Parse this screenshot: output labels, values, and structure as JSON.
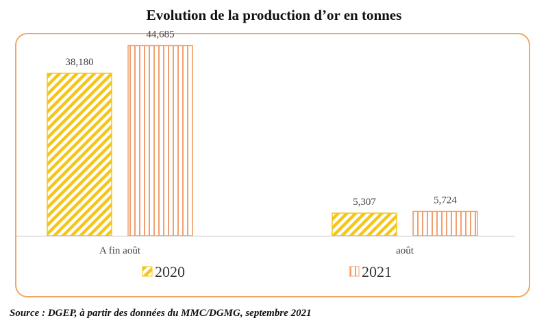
{
  "title": "Evolution de la production d’or en tonnes",
  "source": "Source : DGEP, à partir des données du MMC/DGMG, septembre 2021",
  "colors": {
    "frame": "#f0a860",
    "s2020": "#f5c518",
    "s2021": "#f0a070",
    "axis": "#bfbfbf",
    "text": "#444444"
  },
  "chart_data": {
    "type": "bar",
    "title": "Evolution de la production d’or en tonnes",
    "categories": [
      "A fin août",
      "août"
    ],
    "series": [
      {
        "name": "2020",
        "values": [
          38.18,
          5.307
        ],
        "labels": [
          "38,180",
          "5,307"
        ],
        "pattern": "diagonal-stripes"
      },
      {
        "name": "2021",
        "values": [
          44.685,
          5.724
        ],
        "labels": [
          "44,685",
          "5,724"
        ],
        "pattern": "vertical-stripes"
      }
    ],
    "ylim": [
      0,
      50
    ],
    "grid": false,
    "legend": "bottom"
  }
}
